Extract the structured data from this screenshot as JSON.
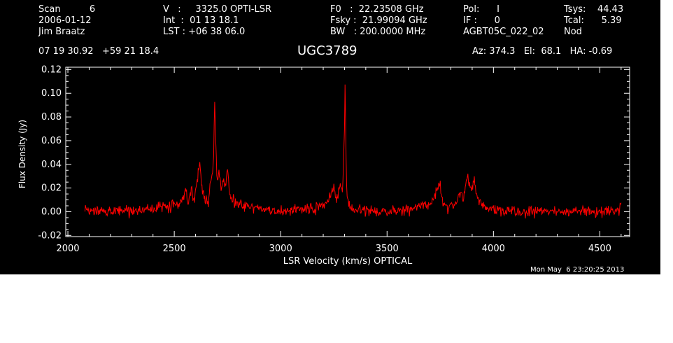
{
  "header": {
    "col1": [
      "Scan          6",
      "2006-01-12",
      "Jim Braatz"
    ],
    "col2": [
      "V   :     3325.0 OPTI-LSR",
      "Int  :  01 13 18.1",
      "LST : +06 38 06.0"
    ],
    "col3": [
      "F0   :  22.23508 GHz",
      "Fsky :  21.99094 GHz",
      "BW   : 200.0000 MHz"
    ],
    "col4": [
      "Pol:      I",
      "IF :      0",
      "AGBT05C_022_02"
    ],
    "col5": [
      "Tsys:    44.43",
      "Tcal:      5.39",
      "Nod"
    ],
    "coords": "07 19 30.92   +59 21 18.4",
    "source": "UGC3789",
    "azelha": "Az: 374.3   El:  68.1   HA: -0.69"
  },
  "timestamp": "Mon May  6 23:20:25 2013",
  "colors": {
    "background": "#000000",
    "foreground": "#ffffff",
    "trace": "#ff0000"
  },
  "chart_data": {
    "type": "line",
    "title": "UGC3789",
    "xlabel": "LSR Velocity (km/s) OPTICAL",
    "ylabel": "Flux Density (Jy)",
    "xlim": [
      1990,
      4640
    ],
    "ylim": [
      -0.021,
      0.122
    ],
    "xticks": [
      2000,
      2500,
      3000,
      3500,
      4000,
      4500
    ],
    "xtick_labels": [
      "2000",
      "2500",
      "3000",
      "3500",
      "4000",
      "4500"
    ],
    "yticks": [
      -0.02,
      0.0,
      0.02,
      0.04,
      0.06,
      0.08,
      0.1,
      0.12
    ],
    "ytick_labels": [
      "-0.02",
      "0.00",
      "0.02",
      "0.04",
      "0.06",
      "0.08",
      "0.10",
      "0.12"
    ],
    "grid": false,
    "series": [
      {
        "color": "#ff0000",
        "x": [
          2080,
          2150,
          2220,
          2300,
          2380,
          2430,
          2460,
          2480,
          2500,
          2520,
          2540,
          2555,
          2565,
          2580,
          2595,
          2610,
          2620,
          2630,
          2640,
          2650,
          2660,
          2670,
          2678,
          2685,
          2690,
          2695,
          2700,
          2710,
          2720,
          2730,
          2740,
          2750,
          2760,
          2780,
          2800,
          2850,
          2900,
          2950,
          3000,
          3050,
          3100,
          3150,
          3200,
          3220,
          3240,
          3250,
          3260,
          3270,
          3280,
          3290,
          3295,
          3300,
          3303,
          3306,
          3310,
          3320,
          3330,
          3350,
          3400,
          3450,
          3500,
          3550,
          3600,
          3650,
          3700,
          3720,
          3740,
          3750,
          3760,
          3770,
          3780,
          3800,
          3820,
          3840,
          3850,
          3860,
          3870,
          3880,
          3890,
          3900,
          3910,
          3920,
          3930,
          3950,
          3970,
          4000,
          4050,
          4100,
          4150,
          4200,
          4300,
          4400,
          4500,
          4550,
          4600
        ],
        "y": [
          0.0,
          0.0,
          0.001,
          0.001,
          0.002,
          0.004,
          0.004,
          0.003,
          0.008,
          0.004,
          0.012,
          0.02,
          0.006,
          0.018,
          0.01,
          0.03,
          0.044,
          0.02,
          0.01,
          0.01,
          0.006,
          0.025,
          0.03,
          0.05,
          0.092,
          0.06,
          0.025,
          0.035,
          0.018,
          0.028,
          0.02,
          0.038,
          0.015,
          0.008,
          0.006,
          0.004,
          0.002,
          0.001,
          0.0,
          0.001,
          0.002,
          0.002,
          0.005,
          0.008,
          0.016,
          0.022,
          0.01,
          0.015,
          0.025,
          0.018,
          0.04,
          0.07,
          0.11,
          0.06,
          0.02,
          0.008,
          0.004,
          0.002,
          0.001,
          0.0,
          0.0,
          0.001,
          0.002,
          0.004,
          0.006,
          0.012,
          0.02,
          0.022,
          0.01,
          0.006,
          0.004,
          0.004,
          0.007,
          0.013,
          0.018,
          0.01,
          0.026,
          0.03,
          0.022,
          0.018,
          0.028,
          0.015,
          0.01,
          0.005,
          0.003,
          0.002,
          0.001,
          0.0,
          0.0,
          0.0,
          0.0,
          0.0,
          0.0,
          0.0,
          0.002
        ]
      }
    ]
  }
}
